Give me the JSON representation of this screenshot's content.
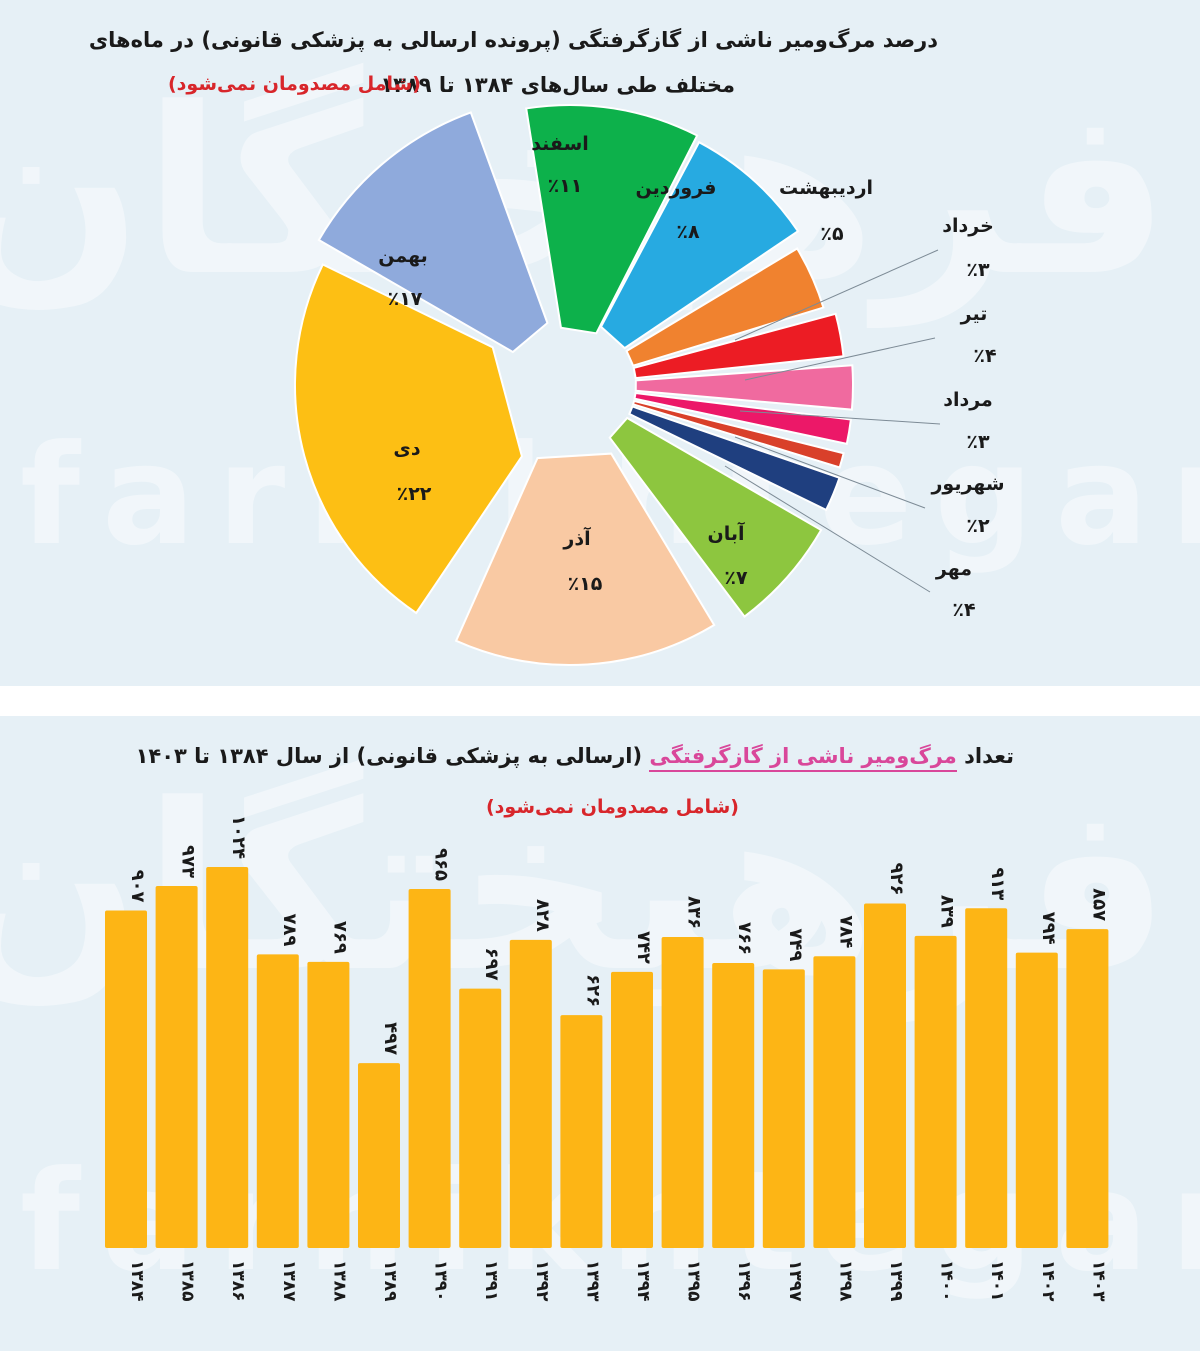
{
  "watermark": {
    "latin": "farhikhtegan",
    "persian": "فرهیختگان"
  },
  "top_chart": {
    "title_line1": "درصد مرگ‌ومیر ناشی از گازگرفتگی (پرونده ارسالی به پزشکی قانونی) در ماه‌های",
    "title_line2": "مختلف طی سال‌های ۱۳۸۴ تا ۱۳۸۹",
    "note": "(شامل مصدومان نمی‌شود)"
  },
  "bottom_chart": {
    "title_prefix": "تعداد",
    "title_highlight": "مرگ‌ومیر ناشی از گازگرفتگی",
    "title_suffix": "(ارسالی به پزشکی قانونی) از سال ۱۳۸۴ تا ۱۴۰۳",
    "note": "(شامل مصدومان نمی‌شود)"
  },
  "colors": {
    "background": "#e6f0f6",
    "bar": "#fdb515",
    "note_red": "#d8262b",
    "highlight_pink": "#d9479a"
  },
  "chart_data": [
    {
      "type": "pie",
      "title": "درصد مرگ‌ومیر ناشی از گازگرفتگی (پرونده ارسالی به پزشکی قانونی) در ماه‌های مختلف طی سال‌های ۱۳۸۴ تا ۱۳۸۹",
      "unit": "%",
      "slices": [
        {
          "label": "اسفند",
          "value": 11,
          "value_label": "٪۱۱",
          "color": "#0db14b"
        },
        {
          "label": "فروردین",
          "value": 8,
          "value_label": "٪۸",
          "color": "#27aae1"
        },
        {
          "label": "اردیبهشت",
          "value": 5,
          "value_label": "٪۵",
          "color": "#f0822f"
        },
        {
          "label": "خرداد",
          "value": 3,
          "value_label": "٪۳",
          "color": "#ec1c24"
        },
        {
          "label": "تیر",
          "value": 4,
          "value_label": "٪۴",
          "color": "#f06a9f"
        },
        {
          "label": "مرداد",
          "value": 3,
          "value_label": "٪۳",
          "color": "#ec1868"
        },
        {
          "label": "شهریور",
          "value": 2,
          "value_label": "٪۲",
          "color": "#d9402a"
        },
        {
          "label": "مهر",
          "value": 4,
          "value_label": "٪۴",
          "color": "#1f3f7f"
        },
        {
          "label": "آبان",
          "value": 7,
          "value_label": "٪۷",
          "color": "#8dc63f"
        },
        {
          "label": "آذر",
          "value": 15,
          "value_label": "٪۱۵",
          "color": "#f9c9a3"
        },
        {
          "label": "دی",
          "value": 22,
          "value_label": "٪۲۲",
          "color": "#fdbf14"
        },
        {
          "label": "بهمن",
          "value": 17,
          "value_label": "٪۱۷",
          "color": "#8faadc"
        }
      ]
    },
    {
      "type": "bar",
      "title": "تعداد مرگ‌ومیر ناشی از گازگرفتگی (ارسالی به پزشکی قانونی) از سال ۱۳۸۴ تا ۱۴۰۳",
      "categories": [
        "۱۳۸۴",
        "۱۳۸۵",
        "۱۳۸۶",
        "۱۳۸۷",
        "۱۳۸۸",
        "۱۳۸۹",
        "۱۳۹۰",
        "۱۳۹۱",
        "۱۳۹۲",
        "۱۳۹۳",
        "۱۳۹۴",
        "۱۳۹۵",
        "۱۳۹۶",
        "۱۳۹۷",
        "۱۳۹۸",
        "۱۳۹۹",
        "۱۴۰۰",
        "۱۴۰۱",
        "۱۴۰۲",
        "۱۴۰۳"
      ],
      "values": [
        907,
        973,
        1024,
        789,
        769,
        497,
        965,
        697,
        828,
        626,
        742,
        836,
        766,
        749,
        784,
        926,
        839,
        913,
        794,
        857
      ],
      "value_labels": [
        "۹۰۷",
        "۹۷۳",
        "۱۰۲۴",
        "۷۸۹",
        "۷۶۹",
        "۴۹۷",
        "۹۶۵",
        "۶۹۷",
        "۸۲۸",
        "۶۲۶",
        "۷۴۲",
        "۸۳۶",
        "۷۶۶",
        "۷۴۹",
        "۷۸۴",
        "۹۲۶",
        "۸۳۹",
        "۹۱۳",
        "۷۹۴",
        "۸۵۷"
      ],
      "xlabel": "",
      "ylabel": "",
      "ylim": [
        0,
        1024
      ],
      "grid": false,
      "legend": "none"
    }
  ]
}
